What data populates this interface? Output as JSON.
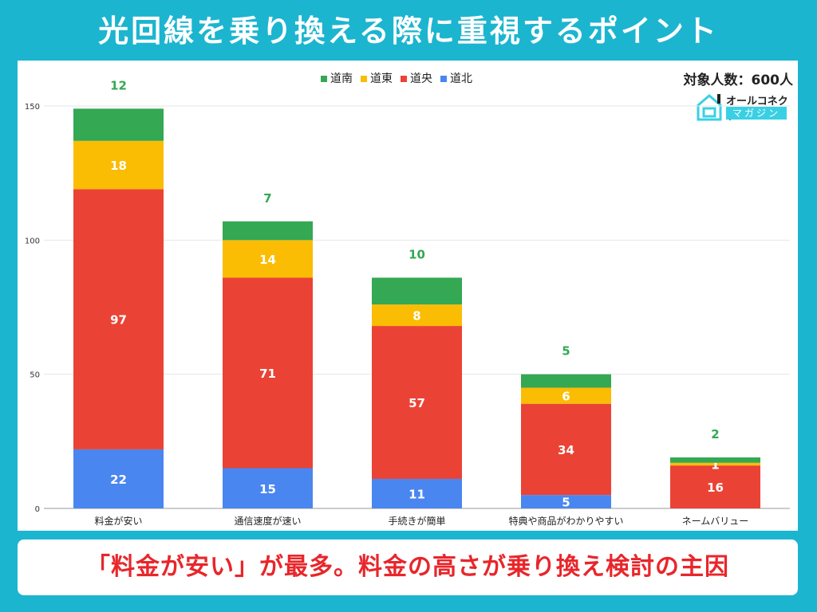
{
  "title": "光回線を乗り換える際に重視するポイント",
  "respondents": "対象人数：600人",
  "logo": {
    "line1": "オールコネクト",
    "line2": "マガジン"
  },
  "footer": "「料金が安い」が最多。料金の高さが乗り換え検討の主因",
  "chart_data": {
    "type": "bar",
    "stacked": true,
    "categories": [
      "料金が安い",
      "通信速度が速い",
      "手続きが簡単",
      "特典や商品がわかりやすい",
      "ネームバリュー"
    ],
    "series": [
      {
        "name": "道北",
        "color": "#4a86f0",
        "values": [
          22,
          15,
          11,
          5,
          0
        ]
      },
      {
        "name": "道央",
        "color": "#ea4335",
        "values": [
          97,
          71,
          57,
          34,
          16
        ]
      },
      {
        "name": "道東",
        "color": "#fbbc04",
        "values": [
          18,
          14,
          8,
          6,
          1
        ]
      },
      {
        "name": "道南",
        "color": "#34a853",
        "values": [
          12,
          7,
          10,
          5,
          2
        ]
      }
    ],
    "legend_order": [
      "道南",
      "道東",
      "道央",
      "道北"
    ],
    "legend_position": "top",
    "yticks": [
      0,
      50,
      100,
      150
    ],
    "ylim": [
      0,
      150
    ],
    "grid": true
  }
}
